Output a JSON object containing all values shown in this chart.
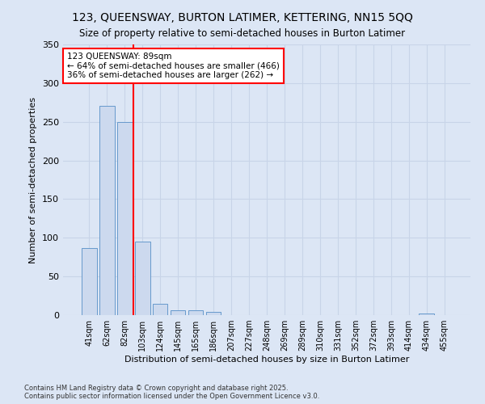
{
  "title_line1": "123, QUEENSWAY, BURTON LATIMER, KETTERING, NN15 5QQ",
  "title_line2": "Size of property relative to semi-detached houses in Burton Latimer",
  "xlabel": "Distribution of semi-detached houses by size in Burton Latimer",
  "ylabel": "Number of semi-detached properties",
  "footnote": "Contains HM Land Registry data © Crown copyright and database right 2025.\nContains public sector information licensed under the Open Government Licence v3.0.",
  "categories": [
    "41sqm",
    "62sqm",
    "82sqm",
    "103sqm",
    "124sqm",
    "145sqm",
    "165sqm",
    "186sqm",
    "207sqm",
    "227sqm",
    "248sqm",
    "269sqm",
    "289sqm",
    "310sqm",
    "331sqm",
    "352sqm",
    "372sqm",
    "393sqm",
    "414sqm",
    "434sqm",
    "455sqm"
  ],
  "values": [
    87,
    271,
    250,
    95,
    15,
    6,
    6,
    4,
    0,
    0,
    0,
    0,
    0,
    0,
    0,
    0,
    0,
    0,
    0,
    2,
    0
  ],
  "bar_color": "#ccd9ee",
  "bar_edge_color": "#6699cc",
  "grid_color": "#c8d4e8",
  "background_color": "#dce6f5",
  "vline_color": "red",
  "vline_index": 2,
  "annotation_text": "123 QUEENSWAY: 89sqm\n← 64% of semi-detached houses are smaller (466)\n36% of semi-detached houses are larger (262) →",
  "annotation_box_color": "white",
  "annotation_box_edge_color": "red",
  "ylim": [
    0,
    350
  ],
  "yticks": [
    0,
    50,
    100,
    150,
    200,
    250,
    300,
    350
  ]
}
